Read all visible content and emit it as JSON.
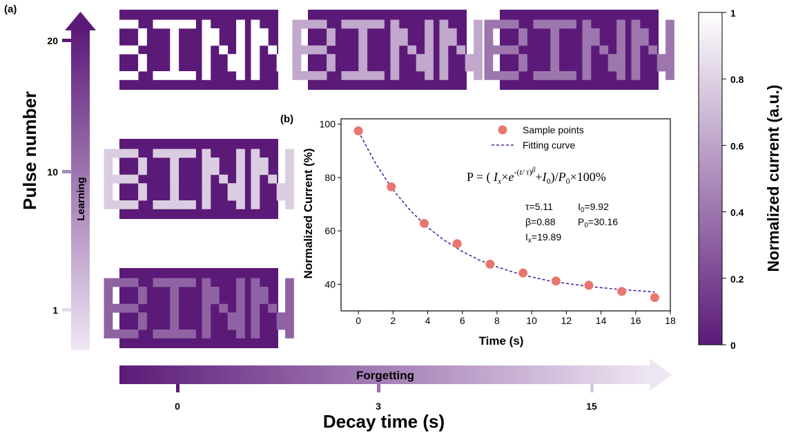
{
  "colors": {
    "dark": "#5b1a78",
    "mid": "#9a6cb3",
    "light": "#e4d8ec",
    "marker": "#e8766e",
    "fit": "#4b1fa0"
  },
  "panel_a": {
    "tag": "(a)",
    "y_axis_title": "Pulse number",
    "y_arrow_label": "Learning",
    "y_ticks": [
      "20",
      "10",
      "1"
    ],
    "x_axis_title": "Decay time (s)",
    "x_arrow_label": "Forgetting",
    "x_ticks": [
      "0",
      "3",
      "15"
    ],
    "pattern_text": "BINN",
    "colorbar": {
      "title": "Normalized current (a.u.)",
      "ticks": [
        "1",
        "0.8",
        "0.6",
        "0.4",
        "0.2",
        "0"
      ]
    },
    "tiles": [
      {
        "pulse": "20",
        "decay": "0",
        "level": 1.0
      },
      {
        "pulse": "20",
        "decay": "3",
        "level": 0.62
      },
      {
        "pulse": "20",
        "decay": "15",
        "level": 0.4
      },
      {
        "pulse": "10",
        "decay": "0",
        "level": 0.78
      },
      {
        "pulse": "1",
        "decay": "0",
        "level": 0.32
      }
    ]
  },
  "chart_data": {
    "type": "scatter",
    "panel_tag": "(b)",
    "xlabel": "Time (s)",
    "ylabel": "Normalized Current (%)",
    "xlim": [
      -1,
      18
    ],
    "ylim": [
      30,
      102
    ],
    "xticks": [
      0,
      2,
      4,
      6,
      8,
      10,
      12,
      14,
      16,
      18
    ],
    "yticks": [
      40,
      60,
      80,
      100
    ],
    "legend_position": "top-center",
    "series": [
      {
        "name": "Sample points",
        "kind": "scatter",
        "x": [
          0,
          1.9,
          3.8,
          5.7,
          7.6,
          9.5,
          11.4,
          13.3,
          15.2,
          17.1
        ],
        "y": [
          97.5,
          76.5,
          62.8,
          55.2,
          47.5,
          44.2,
          41.2,
          39.6,
          37.3,
          35.0
        ]
      },
      {
        "name": "Fitting curve",
        "kind": "line",
        "style": "dashed",
        "x": [
          0,
          1,
          2,
          3,
          4,
          5,
          6,
          7,
          8,
          9,
          10,
          11,
          12,
          13,
          14,
          15,
          16,
          17.1
        ],
        "y": [
          97.3,
          85.2,
          75.4,
          67.6,
          61.3,
          56.3,
          52.3,
          49.0,
          46.5,
          44.4,
          42.7,
          41.3,
          40.3,
          39.4,
          38.7,
          38.1,
          37.6,
          37.1
        ]
      }
    ],
    "equation": "P = ( Iₓ×e^-(t/τ)^β + I₀)/P₀×100%",
    "params": {
      "tau": "τ=5.11",
      "I0": "I0=9.92",
      "beta": "β=0.88",
      "P0": "P0=30.16",
      "Ix": "Ix=19.89"
    }
  }
}
